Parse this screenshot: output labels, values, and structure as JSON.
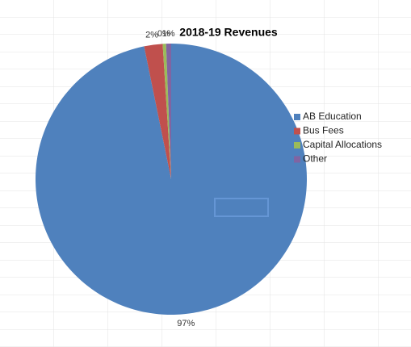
{
  "chart_data": {
    "type": "pie",
    "title": "2018-19 Revenues",
    "categories": [
      "AB Education",
      "Bus Fees",
      "Capital Allocations",
      "Other"
    ],
    "values": [
      96.8,
      2.2,
      0.4,
      0.6
    ],
    "value_labels": [
      "97%",
      "2%",
      "0%",
      "1%"
    ],
    "colors": [
      "#4f81bd",
      "#c0504d",
      "#9bbb59",
      "#8064a2"
    ],
    "legend": "right"
  }
}
